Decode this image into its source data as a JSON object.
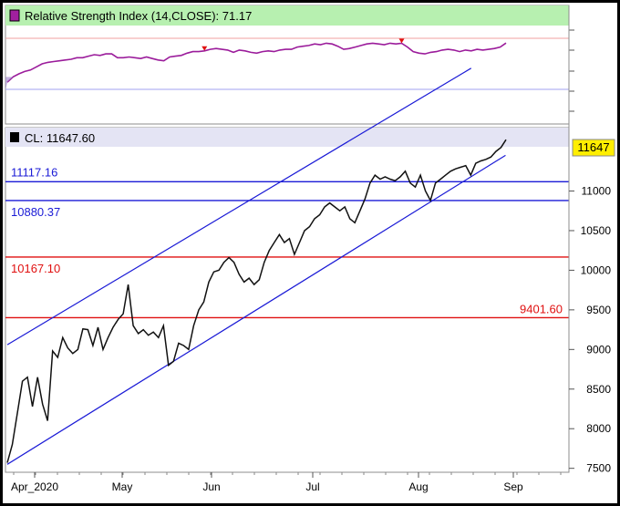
{
  "colors": {
    "rsi_header_bg": "#b7f0b0",
    "price_header_bg": "#e4e4f4",
    "rsi_line": "#9b1c9b",
    "price_line": "#111111",
    "channel": "#1a1ad6",
    "support_blue": "#1a1ad6",
    "support_red": "#e01010",
    "last_price_badge": "#ffee00",
    "rsi_overbought": "#f0a0a0",
    "rsi_oversold": "#a0a0f0"
  },
  "rsi_panel": {
    "title": "Relative Strength Index (14,CLOSE): 71.17"
  },
  "price_panel": {
    "title": "CL: 11647.60",
    "last_price_badge": "11647"
  },
  "chart_data": [
    {
      "type": "line",
      "title": "Relative Strength Index (14,CLOSE): 71.17",
      "series": [
        {
          "name": "RSI",
          "values": [
            20,
            27,
            31,
            34,
            36,
            40,
            44,
            46,
            47,
            48,
            49,
            50,
            52,
            52,
            54,
            56,
            55,
            57,
            57,
            52,
            52,
            53,
            52,
            51,
            53,
            51,
            49,
            48,
            53,
            54,
            55,
            58,
            60,
            60,
            61,
            63,
            64,
            63,
            62,
            59,
            62,
            61,
            59,
            58,
            60,
            61,
            60,
            62,
            63,
            63,
            66,
            67,
            68,
            70,
            69,
            71,
            70,
            67,
            63,
            64,
            66,
            68,
            70,
            71,
            70,
            69,
            71,
            70,
            71,
            66,
            60,
            58,
            57,
            59,
            60,
            62,
            63,
            62,
            60,
            62,
            61,
            63,
            62,
            63,
            64,
            66,
            71.17
          ]
        }
      ],
      "ylim": [
        0,
        100
      ],
      "overbought": 70,
      "oversold": 30,
      "markers": [
        "down-arrow",
        "down-arrow"
      ]
    },
    {
      "type": "line",
      "title": "CL: 11647.60",
      "x_tick_labels": [
        "Apr_2020",
        "May",
        "Jun",
        "Jul",
        "Aug",
        "Sep"
      ],
      "y_tick_labels": [
        "7500",
        "8000",
        "8500",
        "9000",
        "9500",
        "10000",
        "10500",
        "11000"
      ],
      "ylim": [
        7450,
        11800
      ],
      "series": [
        {
          "name": "CL",
          "values": [
            7570,
            7800,
            8200,
            8600,
            8650,
            8280,
            8650,
            8310,
            8100,
            8980,
            8900,
            9150,
            9020,
            8950,
            9000,
            9260,
            9250,
            9050,
            9280,
            9000,
            9150,
            9280,
            9380,
            9450,
            9820,
            9300,
            9200,
            9250,
            9180,
            9220,
            9150,
            9300,
            8800,
            8850,
            9080,
            9050,
            9000,
            9300,
            9500,
            9600,
            9850,
            9980,
            10000,
            10100,
            10160,
            10100,
            9950,
            9850,
            9900,
            9820,
            9880,
            10100,
            10250,
            10350,
            10450,
            10350,
            10400,
            10200,
            10350,
            10500,
            10550,
            10650,
            10700,
            10800,
            10850,
            10800,
            10750,
            10800,
            10650,
            10600,
            10750,
            10900,
            11100,
            11200,
            11150,
            11180,
            11150,
            11130,
            11180,
            11250,
            11100,
            11050,
            11200,
            11000,
            10880,
            11100,
            11150,
            11200,
            11250,
            11280,
            11300,
            11320,
            11200,
            11350,
            11380,
            11400,
            11430,
            11500,
            11550,
            11647.6
          ]
        }
      ],
      "horizontal_lines": [
        {
          "label": "11117.16",
          "value": 11117.16,
          "color": "#1a1ad6"
        },
        {
          "label": "10880.37",
          "value": 10880.37,
          "color": "#1a1ad6"
        },
        {
          "label": "10167.10",
          "value": 10167.1,
          "color": "#e01010"
        },
        {
          "label": "9401.60",
          "value": 9401.6,
          "color": "#e01010"
        }
      ],
      "channel": {
        "upper": [
          {
            "x": 0,
            "y": 9060
          },
          {
            "x": 0.93,
            "y": 12550
          }
        ],
        "lower": [
          {
            "x": 0,
            "y": 7550
          },
          {
            "x": 0.999,
            "y": 11450
          }
        ]
      }
    }
  ]
}
